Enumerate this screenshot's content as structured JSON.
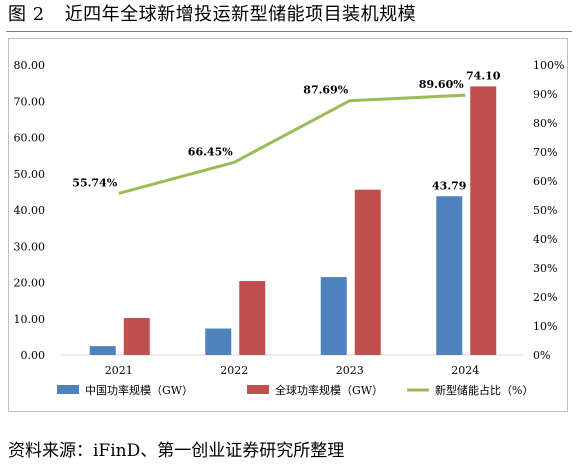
{
  "title": {
    "label": "图 2",
    "text": "近四年全球新增投运新型储能项目装机规模"
  },
  "source": "资料来源：iFinD、第一创业证券研究所整理",
  "chart_data": {
    "type": "bar",
    "categories": [
      "2021",
      "2022",
      "2023",
      "2024"
    ],
    "series": [
      {
        "name": "中国功率规模（GW）",
        "type": "bar",
        "axis": "left",
        "color": "#4f81bd",
        "values": [
          2.45,
          7.3,
          21.5,
          43.79
        ],
        "labels": [
          "",
          "",
          "",
          "43.79"
        ]
      },
      {
        "name": "全球功率规模（GW）",
        "type": "bar",
        "axis": "left",
        "color": "#c0504d",
        "values": [
          10.2,
          20.4,
          45.6,
          74.1
        ],
        "labels": [
          "",
          "",
          "",
          "74.10"
        ]
      },
      {
        "name": "新型储能占比（%）",
        "type": "line",
        "axis": "right",
        "color": "#9bbb59",
        "values": [
          55.74,
          66.45,
          87.69,
          89.6
        ],
        "labels": [
          "55.74%",
          "66.45%",
          "87.69%",
          "89.60%"
        ]
      }
    ],
    "y_left": {
      "min": 0,
      "max": 80,
      "ticks": [
        "0.00",
        "10.00",
        "20.00",
        "30.00",
        "40.00",
        "50.00",
        "60.00",
        "70.00",
        "80.00"
      ]
    },
    "y_right": {
      "min": 0,
      "max": 100,
      "ticks": [
        "0%",
        "10%",
        "20%",
        "30%",
        "40%",
        "50%",
        "60%",
        "70%",
        "80%",
        "90%",
        "100%"
      ]
    },
    "grid": false,
    "legend_position": "bottom"
  }
}
